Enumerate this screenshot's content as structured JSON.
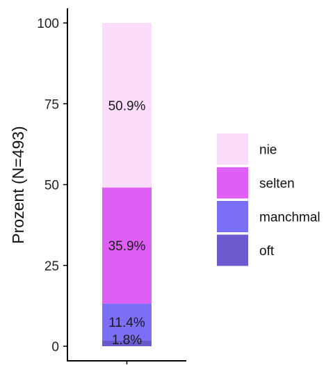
{
  "chart_data": {
    "type": "bar",
    "stacked": true,
    "title": "",
    "xlabel": "",
    "ylabel": "Prozent (N=493)",
    "ylim": [
      0,
      100
    ],
    "yticks": [
      0,
      25,
      50,
      75,
      100
    ],
    "categories": [
      ""
    ],
    "grid": false,
    "legend_position": "right",
    "series": [
      {
        "name": "oft",
        "values": [
          1.8
        ],
        "label": "1.8%",
        "color": "#6a5acd"
      },
      {
        "name": "manchmal",
        "values": [
          11.4
        ],
        "label": "11.4%",
        "color": "#7b6ff8"
      },
      {
        "name": "selten",
        "values": [
          35.9
        ],
        "label": "35.9%",
        "color": "#dd5ff5"
      },
      {
        "name": "nie",
        "values": [
          50.9
        ],
        "label": "50.9%",
        "color": "#fbdcfb"
      }
    ],
    "legend_order": [
      "nie",
      "selten",
      "manchmal",
      "oft"
    ]
  }
}
